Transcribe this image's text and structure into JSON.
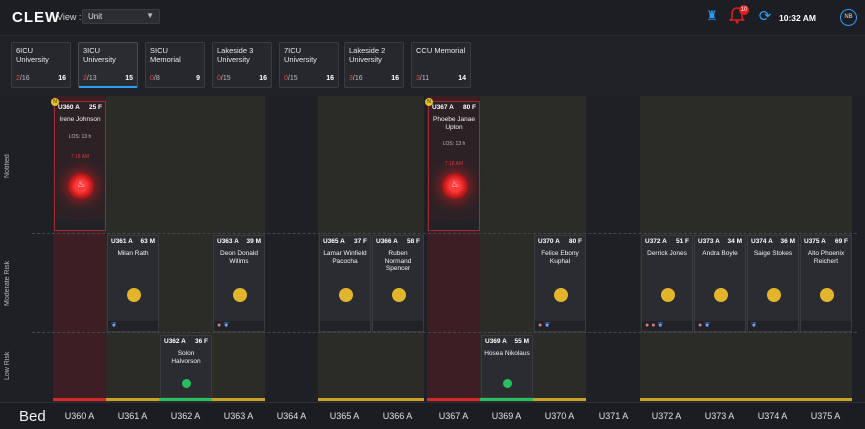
{
  "header": {
    "logo": "CLEW",
    "view_label": "View :",
    "view_value": "Unit",
    "notifications_count": "10",
    "time": "10:32 AM",
    "avatar_initials": "NB",
    "accent": "#2a9df4"
  },
  "units": [
    {
      "name": "6ICU University",
      "ratio_num": "2",
      "ratio_den": "/16",
      "total": "16"
    },
    {
      "name": "3ICU University",
      "ratio_num": "2",
      "ratio_den": "/13",
      "total": "15",
      "active": true
    },
    {
      "name": "SICU Memorial",
      "ratio_num": "0",
      "ratio_den": "/8",
      "total": "9"
    },
    {
      "name": "Lakeside 3 University",
      "ratio_num": "0",
      "ratio_den": "/15",
      "total": "16"
    },
    {
      "name": "7ICU University",
      "ratio_num": "0",
      "ratio_den": "/15",
      "total": "16"
    },
    {
      "name": "Lakeside 2 University",
      "ratio_num": "3",
      "ratio_den": "/16",
      "total": "16"
    },
    {
      "name": "CCU Memorial",
      "ratio_num": "3",
      "ratio_den": "/11",
      "total": "14"
    }
  ],
  "lanes": {
    "notified": "Notified",
    "moderate": "Moderate Risk",
    "low": "Low Risk"
  },
  "cards": {
    "u360": {
      "bed": "U360 A",
      "age": "25 F",
      "name": "Irene Johnson",
      "los": "LOS: 13 h",
      "sub": "7:18 AM",
      "badge": "N"
    },
    "u367": {
      "bed": "U367 A",
      "age": "80 F",
      "name": "Phoebe Janae Upton",
      "los": "LOS: 13 h",
      "sub": "7:18 AM",
      "badge": "N"
    },
    "u361": {
      "bed": "U361 A",
      "age": "63 M",
      "name": "Milan Rath"
    },
    "u363": {
      "bed": "U363 A",
      "age": "39 M",
      "name": "Deon Donald Willms"
    },
    "u365": {
      "bed": "U365 A",
      "age": "37 F",
      "name": "Lamar Winfield Pacocha"
    },
    "u366": {
      "bed": "U366 A",
      "age": "58 F",
      "name": "Ruben Normand Spencer"
    },
    "u370": {
      "bed": "U370 A",
      "age": "80 F",
      "name": "Felice Ebony Kuphal"
    },
    "u372": {
      "bed": "U372 A",
      "age": "51 F",
      "name": "Derrick Jones"
    },
    "u373": {
      "bed": "U373 A",
      "age": "34 M",
      "name": "Andra Boyle"
    },
    "u374": {
      "bed": "U374 A",
      "age": "36 M",
      "name": "Saige Stokes"
    },
    "u375": {
      "bed": "U375 A",
      "age": "69 F",
      "name": "Alto Phoenix Reichert"
    },
    "u362": {
      "bed": "U362 A",
      "age": "36 F",
      "name": "Solon Halvorson"
    },
    "u369": {
      "bed": "U369 A",
      "age": "55 M",
      "name": "Hosea Nikolaus"
    }
  },
  "beds": {
    "title": "Bed",
    "labels": [
      "U360 A",
      "U361 A",
      "U362 A",
      "U363 A",
      "U364 A",
      "U365 A",
      "U366 A",
      "U367 A",
      "U369 A",
      "U370 A",
      "U371 A",
      "U372 A",
      "U373 A",
      "U374 A",
      "U375 A"
    ]
  },
  "colors": {
    "alert": "#d02a2a",
    "moderate": "#e2b52d",
    "low": "#27c060"
  }
}
